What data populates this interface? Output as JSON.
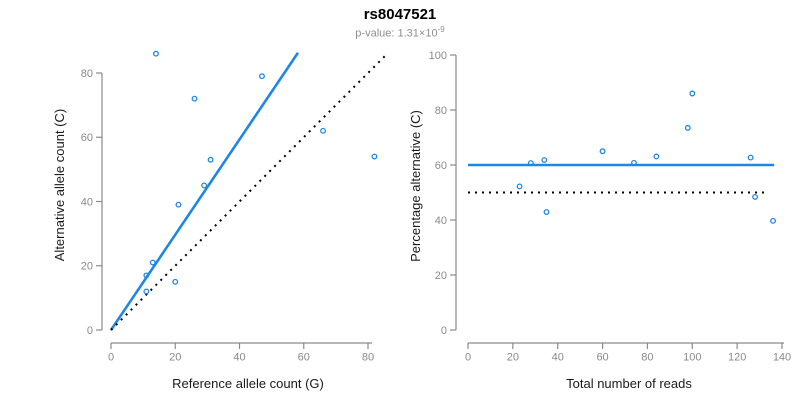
{
  "header": {
    "title": "rs8047521",
    "p_value_text": "p-value: 1.31×10",
    "p_value_exponent": "-9"
  },
  "style": {
    "accent_blue": "#1E87E5",
    "dotted_black": "#000000",
    "axis_gray": "#8a8a8a",
    "label_black": "#1a1a1a",
    "background": "#ffffff"
  },
  "chart_data": [
    {
      "type": "scatter",
      "panel": "left",
      "xlabel": "Reference allele count (G)",
      "ylabel": "Alternative allele count (C)",
      "xlim": [
        0,
        83
      ],
      "ylim": [
        0,
        86
      ],
      "xticks": [
        0,
        20,
        40,
        60,
        80
      ],
      "yticks": [
        0,
        20,
        40,
        60,
        80
      ],
      "grid": false,
      "legend": null,
      "marker": "open-circle",
      "points": [
        [
          11,
          12
        ],
        [
          11,
          17
        ],
        [
          13,
          21
        ],
        [
          14,
          86
        ],
        [
          20,
          15
        ],
        [
          21,
          39
        ],
        [
          26,
          72
        ],
        [
          29,
          45
        ],
        [
          31,
          53
        ],
        [
          47,
          79
        ],
        [
          66,
          62
        ],
        [
          82,
          54
        ]
      ],
      "lines": [
        {
          "name": "fit-line",
          "style": "solid",
          "color": "#1E87E5",
          "x1": 0,
          "y1": 0,
          "x2": 58.2,
          "y2": 86.3
        },
        {
          "name": "identity-line",
          "style": "dotted",
          "color": "#000000",
          "x1": 0,
          "y1": 0,
          "x2": 86,
          "y2": 86
        }
      ]
    },
    {
      "type": "scatter",
      "panel": "right",
      "xlabel": "Total number of reads",
      "ylabel": "Percentage alternative (C)",
      "xlim": [
        0,
        140
      ],
      "ylim": [
        0,
        100
      ],
      "xticks": [
        0,
        20,
        40,
        60,
        80,
        100,
        120,
        140
      ],
      "yticks": [
        0,
        20,
        40,
        60,
        80,
        100
      ],
      "grid": false,
      "legend": null,
      "marker": "open-circle",
      "points": [
        [
          23,
          52.2
        ],
        [
          28,
          60.7
        ],
        [
          34,
          61.8
        ],
        [
          35,
          42.9
        ],
        [
          60,
          65.0
        ],
        [
          74,
          60.8
        ],
        [
          84,
          63.1
        ],
        [
          98,
          73.5
        ],
        [
          100,
          86.0
        ],
        [
          126,
          62.7
        ],
        [
          128,
          48.4
        ],
        [
          136,
          39.7
        ]
      ],
      "lines": [
        {
          "name": "mean-percentage-line",
          "style": "solid",
          "color": "#1E87E5",
          "x1": 0,
          "y1": 60,
          "x2": 136.5,
          "y2": 60
        },
        {
          "name": "expected-50-line",
          "style": "dotted",
          "color": "#000000",
          "x1": 0,
          "y1": 50,
          "x2": 134,
          "y2": 50
        }
      ]
    }
  ]
}
